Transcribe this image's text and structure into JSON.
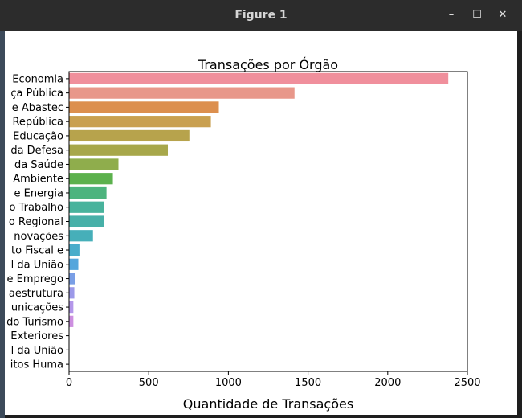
{
  "window": {
    "title": "Figure 1",
    "minimize_glyph": "–",
    "maximize_glyph": "☐",
    "close_glyph": "✕"
  },
  "chart_data": {
    "type": "bar",
    "orientation": "horizontal",
    "title": "Transações por Órgão",
    "xlabel": "Quantidade de Transações",
    "ylabel": "",
    "xlim": [
      0,
      2500
    ],
    "xticks": [
      0,
      500,
      1000,
      1500,
      2000,
      2500
    ],
    "categories": [
      "Economia",
      "ça Pública",
      "e Abastec",
      "República",
      "Educação",
      "da Defesa",
      "da Saúde",
      "Ambiente",
      "e Energia",
      "o Trabalho",
      "o Regional",
      "novações ",
      "to Fiscal e ",
      "l da União",
      "e Emprego",
      "aestrutura",
      "unicações",
      "do Turismo",
      "Exteriores",
      "l da União",
      "itos Huma"
    ],
    "values": [
      2380,
      1415,
      940,
      890,
      755,
      620,
      310,
      275,
      235,
      220,
      220,
      150,
      65,
      58,
      38,
      33,
      27,
      27,
      2,
      1,
      1
    ],
    "colors": [
      "#f08f9c",
      "#e8978a",
      "#dc8f4e",
      "#c9a050",
      "#b7a34c",
      "#a7a74a",
      "#8fad4c",
      "#5cb14d",
      "#4db47e",
      "#48b39c",
      "#47b0a8",
      "#46afb9",
      "#49adcb",
      "#55a6dc",
      "#7a9fe6",
      "#9c99e9",
      "#b497ea",
      "#cd8fe0",
      "#e388d3",
      "#ea8ec1",
      "#ed90ae"
    ]
  }
}
